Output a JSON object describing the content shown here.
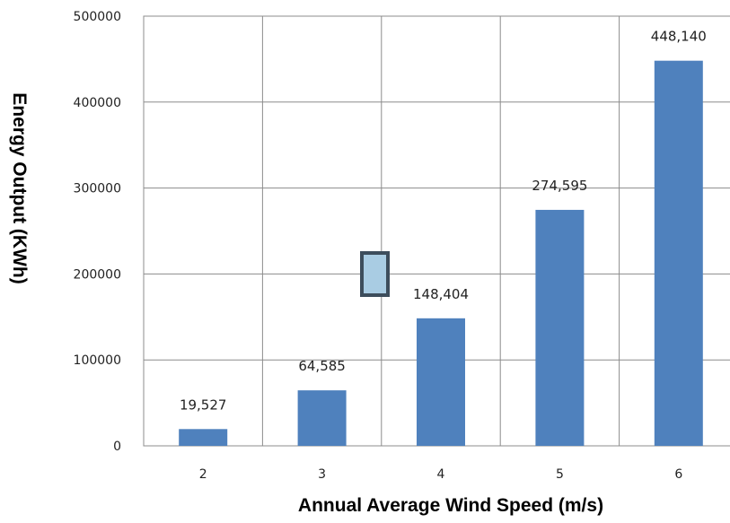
{
  "chart_data": {
    "type": "bar",
    "categories": [
      "2",
      "3",
      "4",
      "5",
      "6"
    ],
    "values": [
      19527,
      64585,
      148404,
      274595,
      448140
    ],
    "data_labels": [
      "19,527",
      "64,585",
      "148,404",
      "274,595",
      "448,140"
    ],
    "y_ticks": [
      "0",
      "100000",
      "200000",
      "300000",
      "400000",
      "500000"
    ],
    "xlabel": "Annual Average Wind Speed (m/s)",
    "ylabel": "Energy Output (KWh)",
    "ylim": [
      0,
      500000
    ],
    "grid": true,
    "legend": "left-center",
    "bar_color": "#4f81bd",
    "legend_color": "#a9cce3"
  }
}
